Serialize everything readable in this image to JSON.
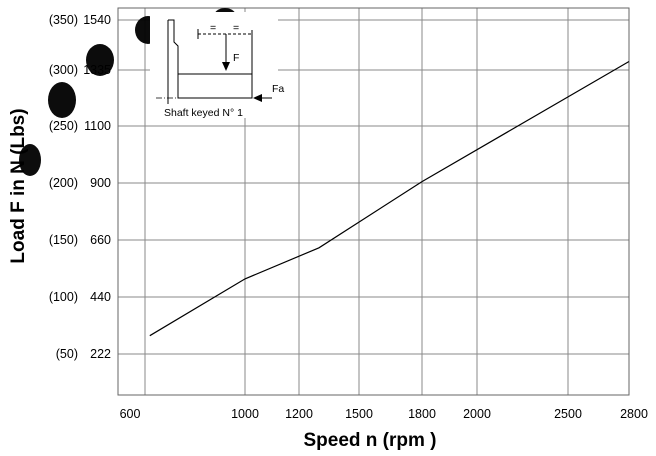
{
  "chart_data": {
    "type": "line",
    "title": "",
    "xlabel": "Speed n (rpm )",
    "ylabel": "Load F in N (Lbs)",
    "x_ticks": [
      {
        "value": 600,
        "label": "600"
      },
      {
        "value": 1000,
        "label": "1000"
      },
      {
        "value": 1200,
        "label": "1200"
      },
      {
        "value": 1500,
        "label": "1500"
      },
      {
        "value": 1800,
        "label": "1800"
      },
      {
        "value": 2000,
        "label": "2000"
      },
      {
        "value": 2500,
        "label": "2500"
      },
      {
        "value": 2800,
        "label": "2800"
      }
    ],
    "y_ticks": [
      {
        "value": 222,
        "label": "222",
        "lbs": "(50)"
      },
      {
        "value": 440,
        "label": "440",
        "lbs": "(100)"
      },
      {
        "value": 660,
        "label": "660",
        "lbs": "(150)"
      },
      {
        "value": 900,
        "label": "900",
        "lbs": "(200)"
      },
      {
        "value": 1100,
        "label": "1100",
        "lbs": "(250)"
      },
      {
        "value": 1335,
        "label": "1335",
        "lbs": "(300)"
      },
      {
        "value": 1540,
        "label": "1540",
        "lbs": "(350)"
      }
    ],
    "series": [
      {
        "x": [
          700,
          1000,
          1300,
          1800,
          2800
        ],
        "y": [
          292,
          510,
          630,
          905,
          1370
        ]
      }
    ],
    "grid": true,
    "legend": "none",
    "inset": {
      "caption": "Shaft keyed N° 1",
      "radial_force_label": "F",
      "axial_force_label": "Fa"
    },
    "colors": {
      "line": "#000000",
      "grid": "#8a8a8a",
      "watermark": "#000000"
    }
  }
}
